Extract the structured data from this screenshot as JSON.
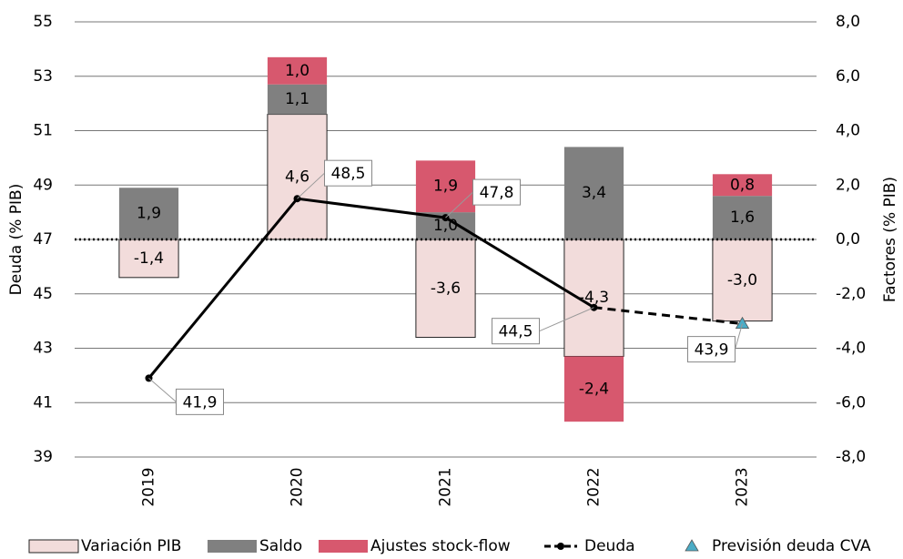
{
  "chart_data": {
    "type": "bar",
    "categories": [
      "2019",
      "2020",
      "2021",
      "2022",
      "2023"
    ],
    "y_label": "Deuda (% PIB)",
    "y2_label": "Factores (% PIB)",
    "ylim": [
      39,
      55
    ],
    "yticks": [
      39,
      41,
      43,
      45,
      47,
      49,
      51,
      53,
      55
    ],
    "y2lim": [
      -8,
      8
    ],
    "y2ticks": [
      {
        "value": -8,
        "label": "-8,0"
      },
      {
        "value": -6,
        "label": "-6,0"
      },
      {
        "value": -4,
        "label": "-4,0"
      },
      {
        "value": -2,
        "label": "-2,0"
      },
      {
        "value": 0,
        "label": "0,0"
      },
      {
        "value": 2,
        "label": "2,0"
      },
      {
        "value": 4,
        "label": "4,0"
      },
      {
        "value": 6,
        "label": "6,0"
      },
      {
        "value": 8,
        "label": "8,0"
      }
    ],
    "grid": true,
    "series": [
      {
        "name": "Variación PIB",
        "type": "bar",
        "axis": "y2",
        "color": "#f2dcdb",
        "values": [
          -1.4,
          4.6,
          -3.6,
          -4.3,
          -3.0
        ],
        "value_labels": [
          "-1,4",
          "4,6",
          "-3,6",
          "-4,3",
          "-3,0"
        ]
      },
      {
        "name": "Saldo",
        "type": "bar",
        "axis": "y2",
        "color": "#808080",
        "values": [
          1.9,
          1.1,
          1.0,
          3.4,
          1.6
        ],
        "value_labels": [
          "1,9",
          "1,1",
          "1,0",
          "3,4",
          "1,6"
        ]
      },
      {
        "name": "Ajustes stock-flow",
        "type": "bar",
        "axis": "y2",
        "color": "#d7586e",
        "values": [
          null,
          1.0,
          1.9,
          -2.4,
          0.8
        ],
        "value_labels": [
          null,
          "1,0",
          "1,9",
          "-2,4",
          "0,8"
        ]
      },
      {
        "name": "Deuda",
        "type": "line",
        "color": "#000000",
        "values": [
          41.9,
          48.5,
          47.8,
          44.5,
          null
        ],
        "value_labels": [
          "41,9",
          "48,5",
          "47,8",
          "44,5",
          null
        ]
      },
      {
        "name": "Previsión deuda CVA",
        "type": "scatter",
        "color": "#4bacc6",
        "values": [
          null,
          null,
          null,
          null,
          43.9
        ],
        "value_labels": [
          null,
          null,
          null,
          null,
          "43,9"
        ]
      }
    ]
  }
}
